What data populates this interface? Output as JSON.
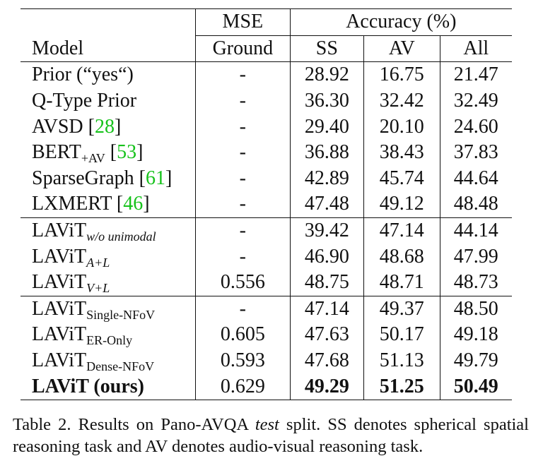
{
  "header": {
    "mse": "MSE",
    "accuracy": "Accuracy (%)",
    "model": "Model",
    "ground": "Ground",
    "ss": "SS",
    "av": "AV",
    "all": "All"
  },
  "groups": [
    {
      "rows": [
        {
          "name": "Prior (“yes“)",
          "sub": "",
          "cite": "",
          "mse": "-",
          "ss": "28.92",
          "av": "16.75",
          "all": "21.47"
        },
        {
          "name": "Q-Type Prior",
          "sub": "",
          "cite": "",
          "mse": "-",
          "ss": "36.30",
          "av": "32.42",
          "all": "32.49"
        },
        {
          "name": "AVSD",
          "sub": "",
          "cite": "28",
          "mse": "-",
          "ss": "29.40",
          "av": "20.10",
          "all": "24.60"
        },
        {
          "name": "BERT",
          "sub": "+AV",
          "cite": "53",
          "mse": "-",
          "ss": "36.88",
          "av": "38.43",
          "all": "37.83"
        },
        {
          "name": "SparseGraph",
          "sub": "",
          "cite": "61",
          "mse": "-",
          "ss": "42.89",
          "av": "45.74",
          "all": "44.64"
        },
        {
          "name": "LXMERT",
          "sub": "",
          "cite": "46",
          "mse": "-",
          "ss": "47.48",
          "av": "49.12",
          "all": "48.48"
        }
      ]
    },
    {
      "rows": [
        {
          "name": "LAViT",
          "sub": "w/o unimodal",
          "cite": "",
          "mse": "-",
          "ss": "39.42",
          "av": "47.14",
          "all": "44.14"
        },
        {
          "name": "LAViT",
          "sub": "A+L",
          "cite": "",
          "mse": "-",
          "ss": "46.90",
          "av": "48.68",
          "all": "47.99"
        },
        {
          "name": "LAViT",
          "sub": "V+L",
          "cite": "",
          "mse": "0.556",
          "ss": "48.75",
          "av": "48.71",
          "all": "48.73"
        }
      ]
    },
    {
      "rows": [
        {
          "name": "LAViT",
          "sub": "Single-NFoV",
          "cite": "",
          "mse": "-",
          "ss": "47.14",
          "av": "49.37",
          "all": "48.50"
        },
        {
          "name": "LAViT",
          "sub": "ER-Only",
          "cite": "",
          "mse": "0.605",
          "ss": "47.63",
          "av": "50.17",
          "all": "49.18"
        },
        {
          "name": "LAViT",
          "sub": "Dense-NFoV",
          "cite": "",
          "mse": "0.593",
          "ss": "47.68",
          "av": "51.13",
          "all": "49.79"
        },
        {
          "name": "LAViT (ours)",
          "sub": "",
          "cite": "",
          "mse": "0.629",
          "ss": "49.29",
          "av": "51.25",
          "all": "50.49"
        }
      ]
    }
  ],
  "caption": {
    "prefix": "Table 2. Results on Pano-AVQA ",
    "italic": "test",
    "suffix": " split.  SS denotes spherical spatial reasoning task and AV denotes audio-visual reasoning task."
  },
  "colors": {
    "citation": "#16c21b",
    "text": "#111111"
  }
}
